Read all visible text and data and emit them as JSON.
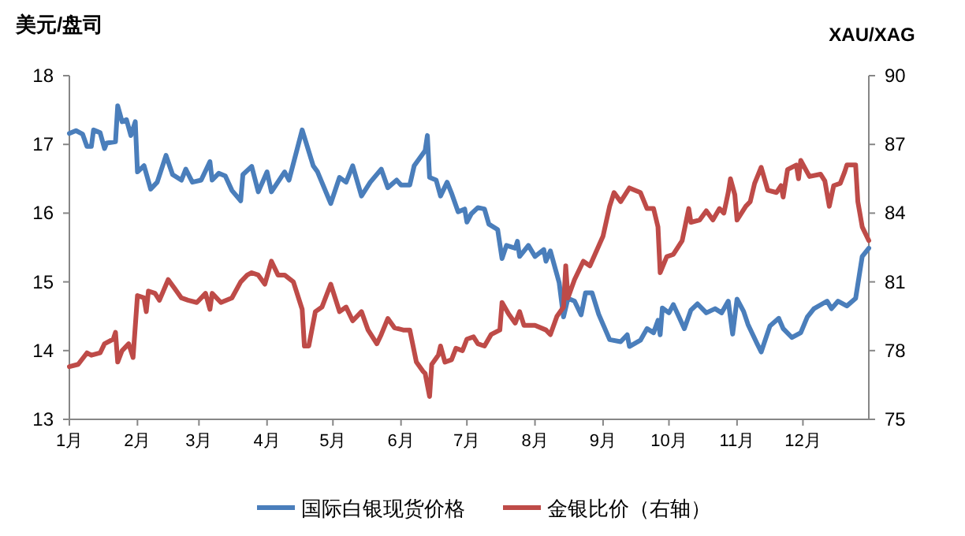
{
  "chart_data": {
    "type": "line",
    "ylabel": "美元/盘司",
    "y2label": "XAU/XAG",
    "xlim": [
      "--01-01",
      "--12-31"
    ],
    "xticks": [
      {
        "value": "--01-01",
        "label": "1月"
      },
      {
        "value": "--02-01",
        "label": "2月"
      },
      {
        "value": "--03-01",
        "label": "3月"
      },
      {
        "value": "--04-01",
        "label": "4月"
      },
      {
        "value": "--05-01",
        "label": "5月"
      },
      {
        "value": "--06-01",
        "label": "6月"
      },
      {
        "value": "--07-01",
        "label": "7月"
      },
      {
        "value": "--08-01",
        "label": "8月"
      },
      {
        "value": "--09-01",
        "label": "9月"
      },
      {
        "value": "--10-01",
        "label": "10月"
      },
      {
        "value": "--11-01",
        "label": "11月"
      },
      {
        "value": "--12-01",
        "label": "12月"
      }
    ],
    "ylim": [
      13,
      18
    ],
    "yticks": [
      13,
      14,
      15,
      16,
      17,
      18
    ],
    "y2lim": [
      75,
      90
    ],
    "y2ticks": [
      75,
      78,
      81,
      84,
      87,
      90
    ],
    "grid": false,
    "legend": "bottom",
    "marker": "none",
    "line_style": "solid",
    "series": [
      {
        "name": "国际白银现货价格",
        "color": "#4a7ebb",
        "x": [
          "--01-01",
          "--01-04",
          "--01-07",
          "--01-09",
          "--01-11",
          "--01-12",
          "--01-15",
          "--01-17",
          "--01-18",
          "--01-22",
          "--01-23",
          "--01-25",
          "--01-27",
          "--01-29",
          "--01-31",
          "--02-01",
          "--02-04",
          "--02-07",
          "--02-10",
          "--02-14",
          "--02-17",
          "--02-21",
          "--02-23",
          "--02-26",
          "--03-02",
          "--03-06",
          "--03-07",
          "--03-10",
          "--03-13",
          "--03-16",
          "--03-20",
          "--03-21",
          "--03-25",
          "--03-28",
          "--04-01",
          "--04-03",
          "--04-09",
          "--04-11",
          "--04-17",
          "--04-22",
          "--04-24",
          "--04-30",
          "--05-04",
          "--05-07",
          "--05-10",
          "--05-14",
          "--05-18",
          "--05-23",
          "--05-26",
          "--05-30",
          "--06-01",
          "--06-05",
          "--06-07",
          "--06-12",
          "--06-13",
          "--06-14",
          "--06-17",
          "--06-19",
          "--06-22",
          "--06-24",
          "--06-27",
          "--06-30",
          "--07-01",
          "--07-03",
          "--07-06",
          "--07-09",
          "--07-11",
          "--07-15",
          "--07-17",
          "--07-19",
          "--07-23",
          "--07-24",
          "--07-25",
          "--07-29",
          "--08-01",
          "--08-05",
          "--08-06",
          "--08-08",
          "--08-12",
          "--08-14",
          "--08-16",
          "--08-19",
          "--08-22",
          "--08-24",
          "--08-27",
          "--08-30",
          "--09-04",
          "--09-09",
          "--09-12",
          "--09-13",
          "--09-18",
          "--09-21",
          "--09-24",
          "--09-26",
          "--09-27",
          "--09-28",
          "--10-01",
          "--10-03",
          "--10-05",
          "--10-08",
          "--10-11",
          "--10-14",
          "--10-18",
          "--10-22",
          "--10-25",
          "--10-28",
          "--10-30",
          "--11-01",
          "--11-04",
          "--11-06",
          "--11-10",
          "--11-12",
          "--11-16",
          "--11-20",
          "--11-22",
          "--11-26",
          "--11-30",
          "--12-03",
          "--12-06",
          "--12-12",
          "--12-14",
          "--12-17",
          "--12-21",
          "--12-25",
          "--12-28",
          "--12-31"
        ],
        "values": [
          17.16,
          17.2,
          17.15,
          16.97,
          16.97,
          17.21,
          17.17,
          16.94,
          17.02,
          17.04,
          17.56,
          17.33,
          17.36,
          17.13,
          17.33,
          16.6,
          16.69,
          16.35,
          16.45,
          16.84,
          16.56,
          16.48,
          16.64,
          16.45,
          16.48,
          16.75,
          16.48,
          16.58,
          16.54,
          16.33,
          16.18,
          16.56,
          16.68,
          16.31,
          16.6,
          16.31,
          16.6,
          16.48,
          17.21,
          16.69,
          16.6,
          16.14,
          16.52,
          16.45,
          16.69,
          16.25,
          16.45,
          16.64,
          16.37,
          16.48,
          16.41,
          16.41,
          16.69,
          16.91,
          17.13,
          16.52,
          16.48,
          16.25,
          16.45,
          16.29,
          16.02,
          16.06,
          15.87,
          15.99,
          16.08,
          16.06,
          15.84,
          15.76,
          15.34,
          15.53,
          15.49,
          15.59,
          15.37,
          15.53,
          15.37,
          15.47,
          15.3,
          15.45,
          14.99,
          14.49,
          14.76,
          14.72,
          14.52,
          14.84,
          14.84,
          14.53,
          14.16,
          14.13,
          14.23,
          14.06,
          14.15,
          14.32,
          14.26,
          14.44,
          14.23,
          14.62,
          14.55,
          14.67,
          14.53,
          14.32,
          14.59,
          14.68,
          14.55,
          14.61,
          14.55,
          14.72,
          14.24,
          14.75,
          14.57,
          14.38,
          14.11,
          13.98,
          14.36,
          14.47,
          14.32,
          14.19,
          14.26,
          14.49,
          14.61,
          14.72,
          14.61,
          14.72,
          14.65,
          14.76,
          15.37,
          15.49
        ]
      },
      {
        "name": "金银比价（右轴）",
        "color": "#be4b48",
        "axis": "y2",
        "x": [
          "--01-01",
          "--01-05",
          "--01-09",
          "--01-11",
          "--01-15",
          "--01-17",
          "--01-21",
          "--01-22",
          "--01-23",
          "--01-25",
          "--01-28",
          "--01-30",
          "--02-01",
          "--02-04",
          "--02-05",
          "--02-06",
          "--02-09",
          "--02-11",
          "--02-15",
          "--02-18",
          "--02-21",
          "--02-24",
          "--02-28",
          "--03-04",
          "--03-06",
          "--03-07",
          "--03-11",
          "--03-16",
          "--03-20",
          "--03-23",
          "--03-25",
          "--03-28",
          "--03-31",
          "--04-03",
          "--04-06",
          "--04-09",
          "--04-13",
          "--04-17",
          "--04-18",
          "--04-20",
          "--04-23",
          "--04-26",
          "--04-30",
          "--05-04",
          "--05-07",
          "--05-10",
          "--05-14",
          "--05-17",
          "--05-21",
          "--05-23",
          "--05-26",
          "--05-29",
          "--06-02",
          "--06-05",
          "--06-08",
          "--06-11",
          "--06-12",
          "--06-14",
          "--06-15",
          "--06-18",
          "--06-19",
          "--06-21",
          "--06-24",
          "--06-26",
          "--06-29",
          "--07-01",
          "--07-04",
          "--07-06",
          "--07-09",
          "--07-12",
          "--07-16",
          "--07-17",
          "--07-20",
          "--07-23",
          "--07-25",
          "--07-27",
          "--08-01",
          "--08-06",
          "--08-08",
          "--08-11",
          "--08-14",
          "--08-15",
          "--08-16",
          "--08-19",
          "--08-23",
          "--08-26",
          "--09-01",
          "--09-04",
          "--09-06",
          "--09-09",
          "--09-13",
          "--09-18",
          "--09-21",
          "--09-24",
          "--09-26",
          "--09-27",
          "--09-30",
          "--10-03",
          "--10-07",
          "--10-10",
          "--10-11",
          "--10-15",
          "--10-18",
          "--10-21",
          "--10-24",
          "--10-26",
          "--10-28",
          "--10-29",
          "--10-31",
          "--11-01",
          "--11-05",
          "--11-07",
          "--11-09",
          "--11-12",
          "--11-15",
          "--11-19",
          "--11-21",
          "--11-22",
          "--11-24",
          "--11-28",
          "--11-29",
          "--11-30",
          "--12-04",
          "--12-09",
          "--12-11",
          "--12-13",
          "--12-15",
          "--12-18",
          "--12-20",
          "--12-21",
          "--12-25",
          "--12-26",
          "--12-28",
          "--12-31"
        ],
        "values": [
          77.3,
          77.4,
          77.9,
          77.8,
          77.9,
          78.3,
          78.5,
          78.8,
          77.5,
          78.0,
          78.3,
          77.7,
          80.4,
          80.3,
          79.7,
          80.6,
          80.5,
          80.2,
          81.1,
          80.7,
          80.3,
          80.2,
          80.1,
          80.5,
          79.8,
          80.5,
          80.1,
          80.3,
          81.0,
          81.3,
          81.4,
          81.3,
          80.9,
          81.9,
          81.3,
          81.3,
          81.0,
          79.8,
          78.2,
          78.2,
          79.7,
          79.9,
          80.9,
          79.7,
          79.9,
          79.3,
          79.7,
          78.9,
          78.3,
          78.7,
          79.4,
          79.0,
          78.9,
          78.9,
          77.5,
          77.1,
          77.0,
          76.0,
          77.4,
          77.8,
          78.2,
          77.5,
          77.6,
          78.1,
          78.0,
          78.5,
          78.6,
          78.3,
          78.2,
          78.7,
          78.9,
          80.1,
          79.6,
          79.2,
          79.7,
          79.1,
          79.1,
          78.9,
          78.7,
          79.5,
          79.9,
          81.7,
          80.3,
          81.1,
          81.9,
          81.7,
          83.0,
          84.3,
          84.9,
          84.5,
          85.1,
          84.9,
          84.2,
          84.2,
          83.4,
          81.4,
          82.1,
          82.2,
          82.8,
          84.2,
          83.6,
          83.7,
          84.1,
          83.7,
          84.2,
          84.0,
          84.9,
          85.5,
          84.8,
          83.7,
          84.3,
          84.5,
          85.3,
          86.0,
          85.0,
          84.9,
          85.2,
          84.7,
          85.9,
          86.1,
          85.5,
          86.3,
          85.6,
          85.7,
          85.4,
          84.3,
          85.2,
          85.3,
          85.8,
          86.1,
          86.1,
          84.5,
          83.4,
          82.8
        ]
      }
    ]
  }
}
